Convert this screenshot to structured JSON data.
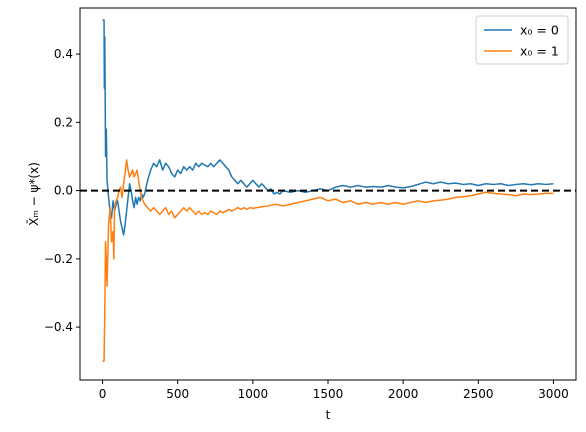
{
  "chart_data": {
    "type": "line",
    "xlabel": "t",
    "ylabel": "X̄ₘ − ψ*(x)",
    "xlim": [
      -150,
      3150
    ],
    "ylim": [
      -0.555,
      0.535
    ],
    "x_ticks": [
      0,
      500,
      1000,
      1500,
      2000,
      2500,
      3000
    ],
    "x_tick_labels": [
      "0",
      "500",
      "1000",
      "1500",
      "2000",
      "2500",
      "3000"
    ],
    "y_ticks": [
      -0.4,
      -0.2,
      0.0,
      0.2,
      0.4
    ],
    "y_tick_labels": [
      "−0.4",
      "−0.2",
      "0.0",
      "0.2",
      "0.4"
    ],
    "reference_line": {
      "y": 0.0,
      "style": "dashed",
      "color": "#000000"
    },
    "grid": false,
    "legend_position": "top-right",
    "series": [
      {
        "name": "x₀ = 0",
        "color": "#1f77b4",
        "points": [
          [
            0,
            0.5
          ],
          [
            10,
            0.5
          ],
          [
            12,
            0.3
          ],
          [
            15,
            0.45
          ],
          [
            20,
            0.1
          ],
          [
            25,
            0.18
          ],
          [
            30,
            0.03
          ],
          [
            40,
            -0.02
          ],
          [
            50,
            -0.06
          ],
          [
            60,
            -0.08
          ],
          [
            70,
            -0.03
          ],
          [
            80,
            -0.06
          ],
          [
            90,
            -0.04
          ],
          [
            100,
            -0.03
          ],
          [
            110,
            -0.06
          ],
          [
            120,
            -0.09
          ],
          [
            130,
            -0.11
          ],
          [
            140,
            -0.13
          ],
          [
            150,
            -0.1
          ],
          [
            160,
            -0.06
          ],
          [
            170,
            -0.02
          ],
          [
            180,
            0.02
          ],
          [
            190,
            0.0
          ],
          [
            200,
            -0.03
          ],
          [
            210,
            -0.05
          ],
          [
            220,
            -0.02
          ],
          [
            230,
            -0.04
          ],
          [
            240,
            -0.02
          ],
          [
            250,
            -0.03
          ],
          [
            260,
            -0.01
          ],
          [
            270,
            -0.02
          ],
          [
            280,
            -0.01
          ],
          [
            300,
            0.03
          ],
          [
            320,
            0.06
          ],
          [
            340,
            0.08
          ],
          [
            360,
            0.07
          ],
          [
            380,
            0.09
          ],
          [
            400,
            0.06
          ],
          [
            420,
            0.08
          ],
          [
            440,
            0.07
          ],
          [
            460,
            0.05
          ],
          [
            480,
            0.04
          ],
          [
            500,
            0.06
          ],
          [
            520,
            0.05
          ],
          [
            540,
            0.07
          ],
          [
            560,
            0.06
          ],
          [
            580,
            0.07
          ],
          [
            600,
            0.06
          ],
          [
            620,
            0.08
          ],
          [
            640,
            0.07
          ],
          [
            660,
            0.08
          ],
          [
            680,
            0.075
          ],
          [
            700,
            0.07
          ],
          [
            720,
            0.08
          ],
          [
            740,
            0.07
          ],
          [
            760,
            0.08
          ],
          [
            780,
            0.09
          ],
          [
            800,
            0.08
          ],
          [
            820,
            0.07
          ],
          [
            840,
            0.06
          ],
          [
            860,
            0.04
          ],
          [
            880,
            0.03
          ],
          [
            900,
            0.02
          ],
          [
            920,
            0.03
          ],
          [
            940,
            0.02
          ],
          [
            960,
            0.01
          ],
          [
            980,
            0.02
          ],
          [
            1000,
            0.03
          ],
          [
            1020,
            0.02
          ],
          [
            1040,
            0.01
          ],
          [
            1060,
            0.02
          ],
          [
            1080,
            0.01
          ],
          [
            1100,
            0.0
          ],
          [
            1120,
            0.005
          ],
          [
            1140,
            -0.01
          ],
          [
            1160,
            -0.005
          ],
          [
            1180,
            -0.01
          ],
          [
            1200,
            0.0
          ],
          [
            1250,
            -0.005
          ],
          [
            1300,
            0.0
          ],
          [
            1350,
            -0.005
          ],
          [
            1400,
            0.0
          ],
          [
            1450,
            0.005
          ],
          [
            1500,
            0.0
          ],
          [
            1550,
            0.01
          ],
          [
            1600,
            0.015
          ],
          [
            1650,
            0.01
          ],
          [
            1700,
            0.015
          ],
          [
            1750,
            0.01
          ],
          [
            1800,
            0.012
          ],
          [
            1850,
            0.01
          ],
          [
            1900,
            0.015
          ],
          [
            1950,
            0.01
          ],
          [
            2000,
            0.008
          ],
          [
            2050,
            0.012
          ],
          [
            2100,
            0.018
          ],
          [
            2150,
            0.025
          ],
          [
            2200,
            0.02
          ],
          [
            2250,
            0.025
          ],
          [
            2300,
            0.02
          ],
          [
            2350,
            0.022
          ],
          [
            2400,
            0.018
          ],
          [
            2450,
            0.02
          ],
          [
            2500,
            0.015
          ],
          [
            2550,
            0.02
          ],
          [
            2600,
            0.018
          ],
          [
            2650,
            0.02
          ],
          [
            2700,
            0.015
          ],
          [
            2750,
            0.018
          ],
          [
            2800,
            0.02
          ],
          [
            2850,
            0.017
          ],
          [
            2900,
            0.02
          ],
          [
            2950,
            0.018
          ],
          [
            3000,
            0.02
          ]
        ]
      },
      {
        "name": "x₀ = 1",
        "color": "#ff7f0e",
        "points": [
          [
            0,
            -0.5
          ],
          [
            10,
            -0.5
          ],
          [
            15,
            -0.35
          ],
          [
            20,
            -0.15
          ],
          [
            25,
            -0.2
          ],
          [
            30,
            -0.28
          ],
          [
            40,
            -0.1
          ],
          [
            50,
            -0.05
          ],
          [
            60,
            -0.15
          ],
          [
            70,
            -0.12
          ],
          [
            75,
            -0.2
          ],
          [
            80,
            -0.05
          ],
          [
            90,
            -0.03
          ],
          [
            100,
            -0.02
          ],
          [
            110,
            0.0
          ],
          [
            120,
            0.01
          ],
          [
            130,
            -0.02
          ],
          [
            140,
            0.02
          ],
          [
            150,
            0.05
          ],
          [
            160,
            0.09
          ],
          [
            170,
            0.06
          ],
          [
            180,
            0.04
          ],
          [
            190,
            0.05
          ],
          [
            200,
            0.06
          ],
          [
            210,
            0.04
          ],
          [
            220,
            0.05
          ],
          [
            230,
            0.06
          ],
          [
            240,
            0.03
          ],
          [
            250,
            0.0
          ],
          [
            260,
            -0.02
          ],
          [
            280,
            -0.04
          ],
          [
            300,
            -0.05
          ],
          [
            320,
            -0.06
          ],
          [
            340,
            -0.05
          ],
          [
            360,
            -0.06
          ],
          [
            380,
            -0.07
          ],
          [
            400,
            -0.06
          ],
          [
            420,
            -0.05
          ],
          [
            440,
            -0.07
          ],
          [
            460,
            -0.06
          ],
          [
            480,
            -0.08
          ],
          [
            500,
            -0.07
          ],
          [
            520,
            -0.06
          ],
          [
            540,
            -0.05
          ],
          [
            560,
            -0.06
          ],
          [
            580,
            -0.05
          ],
          [
            600,
            -0.06
          ],
          [
            620,
            -0.07
          ],
          [
            640,
            -0.06
          ],
          [
            660,
            -0.07
          ],
          [
            680,
            -0.065
          ],
          [
            700,
            -0.07
          ],
          [
            720,
            -0.06
          ],
          [
            740,
            -0.065
          ],
          [
            760,
            -0.07
          ],
          [
            780,
            -0.06
          ],
          [
            800,
            -0.065
          ],
          [
            820,
            -0.06
          ],
          [
            840,
            -0.055
          ],
          [
            860,
            -0.06
          ],
          [
            880,
            -0.055
          ],
          [
            900,
            -0.05
          ],
          [
            920,
            -0.055
          ],
          [
            940,
            -0.05
          ],
          [
            960,
            -0.055
          ],
          [
            980,
            -0.05
          ],
          [
            1000,
            -0.052
          ],
          [
            1050,
            -0.048
          ],
          [
            1100,
            -0.045
          ],
          [
            1150,
            -0.04
          ],
          [
            1200,
            -0.045
          ],
          [
            1250,
            -0.04
          ],
          [
            1300,
            -0.035
          ],
          [
            1350,
            -0.03
          ],
          [
            1400,
            -0.025
          ],
          [
            1450,
            -0.02
          ],
          [
            1500,
            -0.03
          ],
          [
            1550,
            -0.025
          ],
          [
            1600,
            -0.035
          ],
          [
            1650,
            -0.03
          ],
          [
            1700,
            -0.04
          ],
          [
            1750,
            -0.035
          ],
          [
            1800,
            -0.04
          ],
          [
            1850,
            -0.035
          ],
          [
            1900,
            -0.04
          ],
          [
            1950,
            -0.035
          ],
          [
            2000,
            -0.04
          ],
          [
            2050,
            -0.035
          ],
          [
            2100,
            -0.03
          ],
          [
            2150,
            -0.035
          ],
          [
            2200,
            -0.03
          ],
          [
            2250,
            -0.028
          ],
          [
            2300,
            -0.025
          ],
          [
            2350,
            -0.02
          ],
          [
            2400,
            -0.018
          ],
          [
            2450,
            -0.015
          ],
          [
            2500,
            -0.01
          ],
          [
            2550,
            -0.005
          ],
          [
            2600,
            -0.008
          ],
          [
            2650,
            -0.01
          ],
          [
            2700,
            -0.012
          ],
          [
            2750,
            -0.015
          ],
          [
            2800,
            -0.01
          ],
          [
            2850,
            -0.012
          ],
          [
            2900,
            -0.01
          ],
          [
            2950,
            -0.008
          ],
          [
            3000,
            -0.008
          ]
        ]
      }
    ]
  }
}
